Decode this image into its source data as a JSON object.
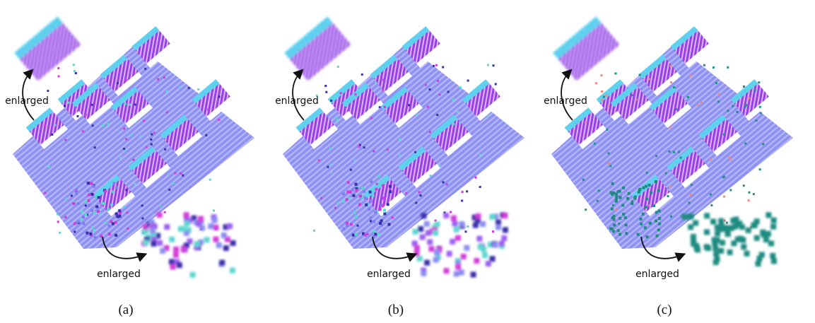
{
  "panels": [
    {
      "label": "(a)",
      "enlarged_top": "enlarged",
      "enlarged_bottom": "enlarged"
    },
    {
      "label": "(b)",
      "enlarged_top": "enlarged",
      "enlarged_bottom": "enlarged"
    },
    {
      "label": "(c)",
      "enlarged_top": "enlarged",
      "enlarged_bottom": "enlarged"
    }
  ]
}
